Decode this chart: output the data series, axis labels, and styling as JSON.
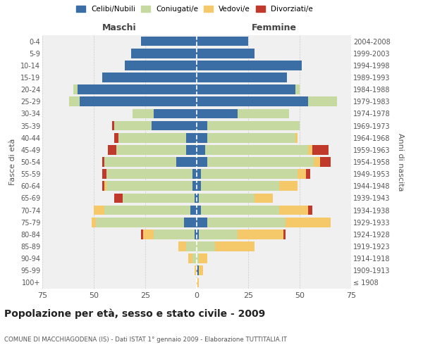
{
  "age_groups": [
    "100+",
    "95-99",
    "90-94",
    "85-89",
    "80-84",
    "75-79",
    "70-74",
    "65-69",
    "60-64",
    "55-59",
    "50-54",
    "45-49",
    "40-44",
    "35-39",
    "30-34",
    "25-29",
    "20-24",
    "15-19",
    "10-14",
    "5-9",
    "0-4"
  ],
  "birth_years": [
    "≤ 1908",
    "1909-1913",
    "1914-1918",
    "1919-1923",
    "1924-1928",
    "1929-1933",
    "1934-1938",
    "1939-1943",
    "1944-1948",
    "1949-1953",
    "1954-1958",
    "1959-1963",
    "1964-1968",
    "1969-1973",
    "1974-1978",
    "1979-1983",
    "1984-1988",
    "1989-1993",
    "1994-1998",
    "1999-2003",
    "2004-2008"
  ],
  "colors": {
    "celibi": "#3a6ea5",
    "coniugati": "#c5d9a0",
    "vedovi": "#f5c96a",
    "divorziati": "#c0392b"
  },
  "males": {
    "celibi": [
      0,
      0,
      0,
      0,
      1,
      6,
      3,
      1,
      2,
      2,
      10,
      5,
      5,
      22,
      21,
      57,
      58,
      46,
      35,
      32,
      27
    ],
    "coniugati": [
      0,
      0,
      2,
      5,
      20,
      43,
      42,
      35,
      42,
      42,
      35,
      34,
      33,
      18,
      10,
      5,
      2,
      0,
      0,
      0,
      0
    ],
    "vedovi": [
      0,
      1,
      2,
      4,
      5,
      2,
      5,
      0,
      1,
      0,
      0,
      0,
      0,
      0,
      0,
      0,
      0,
      0,
      0,
      0,
      0
    ],
    "divorziati": [
      0,
      0,
      0,
      0,
      1,
      0,
      0,
      4,
      1,
      2,
      1,
      4,
      2,
      1,
      0,
      0,
      0,
      0,
      0,
      0,
      0
    ]
  },
  "females": {
    "celibi": [
      0,
      1,
      0,
      0,
      1,
      5,
      2,
      1,
      2,
      2,
      5,
      4,
      5,
      5,
      20,
      54,
      48,
      44,
      51,
      28,
      25
    ],
    "coniugati": [
      0,
      0,
      1,
      9,
      19,
      38,
      38,
      27,
      38,
      47,
      52,
      50,
      43,
      45,
      25,
      14,
      2,
      0,
      0,
      0,
      0
    ],
    "vedovi": [
      1,
      2,
      4,
      19,
      22,
      22,
      14,
      9,
      9,
      4,
      3,
      2,
      1,
      0,
      0,
      0,
      0,
      0,
      0,
      0,
      0
    ],
    "divorziati": [
      0,
      0,
      0,
      0,
      1,
      0,
      2,
      0,
      0,
      2,
      5,
      8,
      0,
      0,
      0,
      0,
      0,
      0,
      0,
      0,
      0
    ]
  },
  "xlim": 75,
  "title": "Popolazione per età, sesso e stato civile - 2009",
  "subtitle": "COMUNE DI MACCHIAGODENA (IS) - Dati ISTAT 1° gennaio 2009 - Elaborazione TUTTITALIA.IT",
  "ylabel_left": "Fasce di età",
  "ylabel_right": "Anni di nascita",
  "xlabel_left": "Maschi",
  "xlabel_right": "Femmine",
  "bg_color": "#f0f0f0"
}
